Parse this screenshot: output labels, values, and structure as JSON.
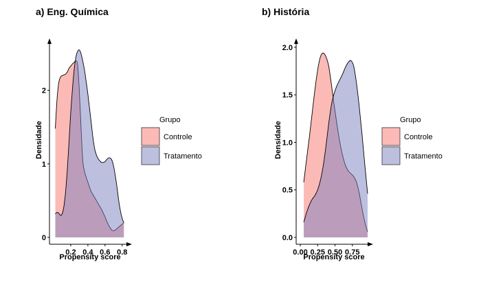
{
  "colors": {
    "controle_fill": "#F8766D",
    "tratamento_fill": "#7B7FBF",
    "fill_opacity": 0.5,
    "stroke": "#000000"
  },
  "chart_data": [
    {
      "type": "area",
      "title": "a) Eng. Química",
      "xlabel": "Propensity score",
      "ylabel": "Densidade",
      "xlim": [
        0.0,
        0.85
      ],
      "ylim": [
        0,
        2.65
      ],
      "xticks": [
        0.2,
        0.4,
        0.6,
        0.8
      ],
      "xtick_labels": [
        "0.2",
        "0.4",
        "0.6",
        "0.8"
      ],
      "yticks": [
        0,
        1,
        2
      ],
      "ytick_labels": [
        "0",
        "1",
        "2"
      ],
      "legend": {
        "title": "Grupo",
        "placement": "right"
      },
      "series": [
        {
          "name": "Controle",
          "x": [
            0.02,
            0.04,
            0.06,
            0.08,
            0.1,
            0.12,
            0.14,
            0.16,
            0.18,
            0.2,
            0.22,
            0.24,
            0.26,
            0.28,
            0.3,
            0.32,
            0.34,
            0.36,
            0.38,
            0.4,
            0.42,
            0.44,
            0.46,
            0.48,
            0.5,
            0.52,
            0.54,
            0.56,
            0.58,
            0.6,
            0.62,
            0.64,
            0.66,
            0.68,
            0.7,
            0.72,
            0.74,
            0.76,
            0.78,
            0.8,
            0.82
          ],
          "y": [
            1.48,
            1.88,
            2.1,
            2.18,
            2.2,
            2.21,
            2.22,
            2.25,
            2.3,
            2.33,
            2.36,
            2.38,
            2.4,
            2.35,
            2.0,
            1.5,
            1.05,
            0.9,
            0.82,
            0.75,
            0.68,
            0.62,
            0.58,
            0.54,
            0.5,
            0.46,
            0.42,
            0.38,
            0.33,
            0.28,
            0.22,
            0.17,
            0.13,
            0.1,
            0.09,
            0.1,
            0.12,
            0.14,
            0.16,
            0.18,
            0.2
          ]
        },
        {
          "name": "Tratamento",
          "x": [
            0.02,
            0.04,
            0.06,
            0.08,
            0.1,
            0.12,
            0.14,
            0.16,
            0.18,
            0.2,
            0.22,
            0.24,
            0.26,
            0.28,
            0.3,
            0.32,
            0.34,
            0.36,
            0.38,
            0.4,
            0.42,
            0.44,
            0.46,
            0.48,
            0.5,
            0.52,
            0.54,
            0.56,
            0.58,
            0.6,
            0.62,
            0.64,
            0.66,
            0.68,
            0.7,
            0.72,
            0.74,
            0.76,
            0.78,
            0.8,
            0.82
          ],
          "y": [
            0.32,
            0.34,
            0.33,
            0.3,
            0.32,
            0.42,
            0.62,
            0.92,
            1.3,
            1.7,
            2.02,
            2.28,
            2.45,
            2.53,
            2.55,
            2.5,
            2.4,
            2.28,
            2.12,
            1.95,
            1.75,
            1.55,
            1.35,
            1.2,
            1.12,
            1.07,
            1.04,
            1.02,
            1.02,
            1.03,
            1.06,
            1.08,
            1.08,
            1.05,
            0.97,
            0.84,
            0.68,
            0.5,
            0.36,
            0.26,
            0.2
          ]
        }
      ]
    },
    {
      "type": "area",
      "title": "b) História",
      "xlabel": "Propensity score",
      "ylabel": "Densidade",
      "xlim": [
        0.0,
        0.97
      ],
      "ylim": [
        0,
        2.05
      ],
      "xticks": [
        0.0,
        0.25,
        0.5,
        0.75
      ],
      "xtick_labels": [
        "0.00",
        "0.25",
        "0.50",
        "0.75"
      ],
      "yticks": [
        0.0,
        0.5,
        1.0,
        1.5,
        2.0
      ],
      "ytick_labels": [
        "0.0",
        "0.5",
        "1.0",
        "1.5",
        "2.0"
      ],
      "legend": {
        "title": "Grupo",
        "placement": "right"
      },
      "series": [
        {
          "name": "Controle",
          "x": [
            0.05,
            0.09,
            0.13,
            0.17,
            0.21,
            0.25,
            0.29,
            0.33,
            0.37,
            0.41,
            0.45,
            0.49,
            0.53,
            0.57,
            0.61,
            0.65,
            0.69,
            0.73,
            0.77,
            0.81,
            0.85,
            0.89,
            0.93,
            0.97
          ],
          "y": [
            0.58,
            0.82,
            1.05,
            1.3,
            1.55,
            1.76,
            1.9,
            1.94,
            1.9,
            1.8,
            1.6,
            1.38,
            1.18,
            1.0,
            0.86,
            0.76,
            0.7,
            0.67,
            0.64,
            0.58,
            0.46,
            0.3,
            0.16,
            0.06
          ]
        },
        {
          "name": "Tratamento",
          "x": [
            0.05,
            0.09,
            0.13,
            0.17,
            0.21,
            0.25,
            0.29,
            0.33,
            0.37,
            0.41,
            0.45,
            0.49,
            0.53,
            0.57,
            0.61,
            0.65,
            0.69,
            0.73,
            0.77,
            0.81,
            0.85,
            0.89,
            0.93,
            0.97
          ],
          "y": [
            0.16,
            0.26,
            0.34,
            0.4,
            0.44,
            0.5,
            0.6,
            0.75,
            0.96,
            1.2,
            1.4,
            1.52,
            1.6,
            1.66,
            1.72,
            1.79,
            1.84,
            1.86,
            1.8,
            1.62,
            1.37,
            1.08,
            0.76,
            0.46
          ]
        }
      ]
    }
  ]
}
